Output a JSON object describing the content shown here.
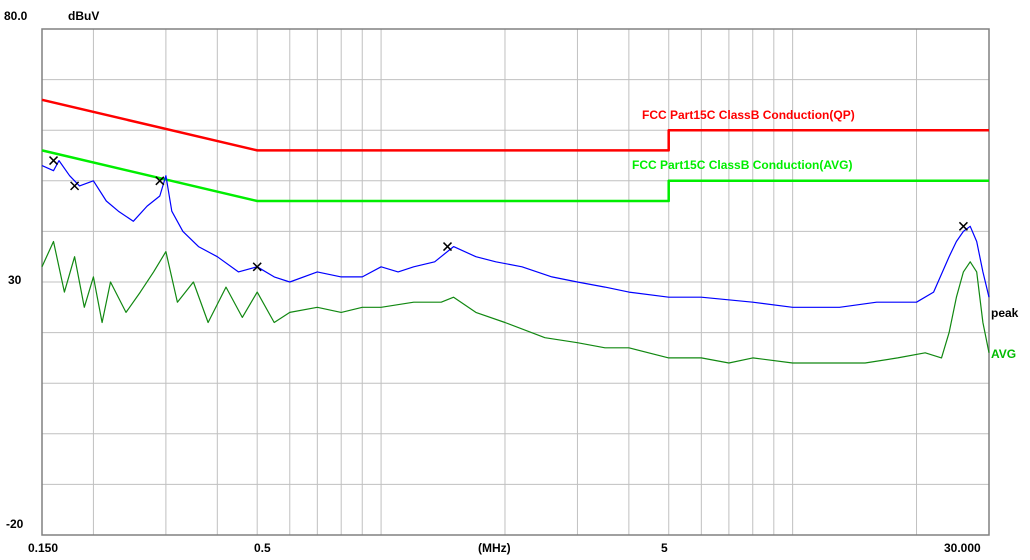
{
  "chart_data": {
    "type": "line",
    "title": "",
    "ylabel": "dBuV",
    "xlabel": "(MHz)",
    "x_scale": "log",
    "xlim": [
      0.15,
      30.0
    ],
    "ylim": [
      -20,
      80
    ],
    "y_tick_labels": [
      "80.0",
      "30",
      "-20"
    ],
    "y_tick_values": [
      80,
      30,
      -20
    ],
    "x_tick_labels": [
      "0.150",
      "0.5",
      "(MHz)",
      "5",
      "30.000"
    ],
    "x_tick_values": [
      0.15,
      0.5,
      1.8,
      5,
      30
    ],
    "grid": true,
    "series": [
      {
        "name": "FCC Part15C ClassB Conduction(QP)",
        "color": "#ff0000",
        "x": [
          0.15,
          0.5,
          0.5,
          5,
          5,
          30
        ],
        "y": [
          66,
          56,
          56,
          56,
          60,
          60
        ]
      },
      {
        "name": "FCC Part15C ClassB Conduction(AVG)",
        "color": "#00ee00",
        "x": [
          0.15,
          0.5,
          0.5,
          5,
          5,
          30
        ],
        "y": [
          56,
          46,
          46,
          46,
          50,
          50
        ]
      },
      {
        "name": "peak",
        "color": "#0000ff",
        "x": [
          0.15,
          0.16,
          0.165,
          0.175,
          0.185,
          0.2,
          0.215,
          0.23,
          0.25,
          0.27,
          0.29,
          0.3,
          0.31,
          0.33,
          0.36,
          0.4,
          0.45,
          0.5,
          0.55,
          0.6,
          0.7,
          0.8,
          0.9,
          1.0,
          1.1,
          1.2,
          1.35,
          1.5,
          1.7,
          1.9,
          2.2,
          2.6,
          3.0,
          3.5,
          4.0,
          5.0,
          6.0,
          8.0,
          10.0,
          13.0,
          16.0,
          20.0,
          22.0,
          24.0,
          25.0,
          26.0,
          27.0,
          28.0,
          29.0,
          30.0
        ],
        "y": [
          53,
          52,
          54,
          51,
          49,
          50,
          46,
          44,
          42,
          45,
          47,
          51,
          44,
          40,
          37,
          35,
          32,
          33,
          31,
          30,
          32,
          31,
          31,
          33,
          32,
          33,
          34,
          37,
          35,
          34,
          33,
          31,
          30,
          29,
          28,
          27,
          27,
          26,
          25,
          25,
          26,
          26,
          28,
          35,
          38,
          40,
          41,
          38,
          32,
          27
        ]
      },
      {
        "name": "AVG",
        "color": "#118811",
        "x": [
          0.15,
          0.16,
          0.17,
          0.18,
          0.19,
          0.2,
          0.21,
          0.22,
          0.24,
          0.26,
          0.28,
          0.3,
          0.32,
          0.35,
          0.38,
          0.42,
          0.46,
          0.5,
          0.55,
          0.6,
          0.7,
          0.8,
          0.9,
          1.0,
          1.2,
          1.4,
          1.5,
          1.7,
          2.0,
          2.5,
          3.0,
          3.5,
          4.0,
          5.0,
          6.0,
          7.0,
          8.0,
          10.0,
          12.0,
          15.0,
          18.0,
          21.0,
          23.0,
          24.0,
          25.0,
          26.0,
          27.0,
          28.0,
          29.0,
          30.0
        ],
        "y": [
          33,
          38,
          28,
          35,
          25,
          31,
          22,
          30,
          24,
          28,
          32,
          36,
          26,
          30,
          22,
          29,
          23,
          28,
          22,
          24,
          25,
          24,
          25,
          25,
          26,
          26,
          27,
          24,
          22,
          19,
          18,
          17,
          17,
          15,
          15,
          14,
          15,
          14,
          14,
          14,
          15,
          16,
          15,
          20,
          27,
          32,
          34,
          32,
          22,
          16
        ]
      }
    ],
    "markers": {
      "x": [
        0.16,
        0.18,
        0.29,
        0.5,
        1.45,
        26.0
      ],
      "y": [
        54,
        49,
        50,
        33,
        37,
        41
      ]
    },
    "annotations": {
      "qp_limit": "FCC Part15C ClassB Conduction(QP)",
      "avg_limit": "FCC Part15C ClassB Conduction(AVG)",
      "peak": "peak",
      "avg": "AVG"
    }
  }
}
